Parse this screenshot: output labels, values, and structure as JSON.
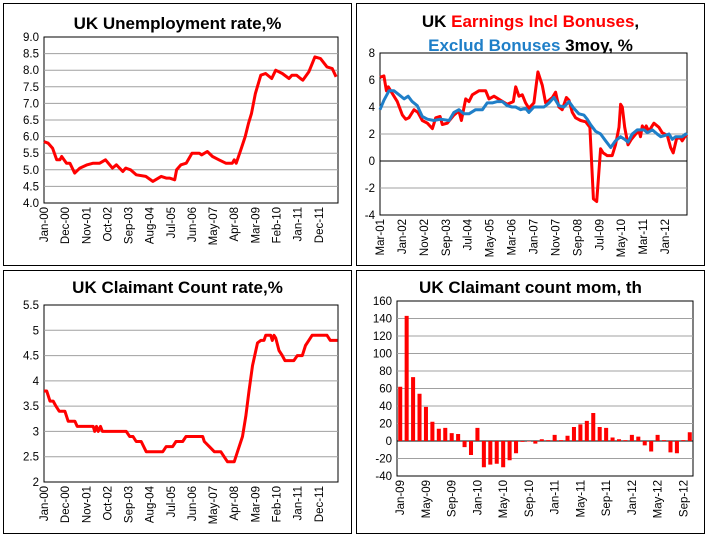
{
  "chart_data": [
    {
      "type": "line",
      "title": "UK Unemployment rate,%",
      "ylim": [
        4.0,
        9.0
      ],
      "xlim": [
        0,
        153
      ],
      "x_unit": "months since Jan-00",
      "yticks": [
        4.0,
        4.5,
        5.0,
        5.5,
        6.0,
        6.5,
        7.0,
        7.5,
        8.0,
        8.5,
        9.0
      ],
      "ytick_labels": [
        "4.0",
        "4.5",
        "5.0",
        "5.5",
        "6.0",
        "6.5",
        "7.0",
        "7.5",
        "8.0",
        "8.5",
        "9.0"
      ],
      "xticks": [
        0,
        11,
        22,
        33,
        44,
        55,
        66,
        77,
        88,
        99,
        110,
        121,
        132,
        143
      ],
      "xtick_labels": [
        "Jan-00",
        "Dec-00",
        "Nov-01",
        "Oct-02",
        "Sep-03",
        "Aug-04",
        "Jul-05",
        "Jun-06",
        "May-07",
        "Apr-08",
        "Mar-09",
        "Feb-10",
        "Jan-11",
        "Dec-11"
      ],
      "grid": true,
      "series": [
        {
          "name": "Unemployment rate",
          "color": "#ff0000",
          "x": [
            0,
            2.2,
            4.5,
            6.6,
            8.3,
            9.2,
            11.7,
            13.5,
            16,
            18.7,
            22.5,
            25.6,
            29,
            32,
            35.6,
            37.7,
            41,
            42.5,
            45,
            48,
            53,
            56.6,
            61,
            63.6,
            65.3,
            68,
            69,
            71.3,
            74,
            77,
            80.8,
            82,
            85,
            87.7,
            91,
            94.6,
            98,
            99,
            100,
            102.4,
            104.7,
            106.4,
            108,
            110,
            112.8,
            115.3,
            118.5,
            120.6,
            124,
            127.5,
            129,
            131.4,
            133.5,
            134.7,
            137.8,
            141,
            143.9,
            147.3,
            150,
            152
          ],
          "y": [
            5.85,
            5.8,
            5.65,
            5.3,
            5.3,
            5.4,
            5.2,
            5.2,
            4.9,
            5.05,
            5.15,
            5.2,
            5.2,
            5.3,
            5.05,
            5.15,
            4.95,
            5.05,
            5.0,
            4.85,
            4.8,
            4.65,
            4.8,
            4.75,
            4.75,
            4.7,
            5.0,
            5.15,
            5.2,
            5.5,
            5.5,
            5.45,
            5.55,
            5.4,
            5.3,
            5.2,
            5.2,
            5.3,
            5.2,
            5.6,
            6.0,
            6.4,
            6.7,
            7.3,
            7.85,
            7.9,
            7.75,
            8.0,
            7.9,
            7.75,
            7.85,
            7.85,
            7.75,
            7.7,
            7.95,
            8.4,
            8.35,
            8.1,
            8.05,
            7.8
          ]
        }
      ]
    },
    {
      "type": "line",
      "title_parts": [
        "UK ",
        "Earnings Incl Bonuses",
        ",",
        "Exclud Bonuses",
        " 3moy, %"
      ],
      "ylim": [
        -4,
        8
      ],
      "xlim": [
        0,
        140
      ],
      "x_unit": "months since Mar-01",
      "yticks": [
        -4,
        -2,
        0,
        2,
        4,
        6,
        8
      ],
      "ytick_labels": [
        "-4",
        "-2",
        "0",
        "2",
        "4",
        "6",
        "8"
      ],
      "xticks": [
        0,
        10,
        20,
        30,
        40,
        50,
        60,
        70,
        80,
        90,
        100,
        110,
        120,
        130
      ],
      "xtick_labels": [
        "Mar-01",
        "Jan-02",
        "Nov-02",
        "Sep-03",
        "Jul-04",
        "May-05",
        "Mar-06",
        "Jan-07",
        "Nov-07",
        "Sep-08",
        "Jul-09",
        "May-10",
        "Mar-11",
        "Jan-12"
      ],
      "grid": true,
      "series": [
        {
          "name": "Earnings Incl Bonuses",
          "color": "#ff0000",
          "x": [
            0,
            1.8,
            2.9,
            3.8,
            5.6,
            7.9,
            10.2,
            11.7,
            13.2,
            15.5,
            17.3,
            19.3,
            21.6,
            23.9,
            25.4,
            27.4,
            28.4,
            30.7,
            33.7,
            36,
            37.1,
            39.1,
            40.6,
            42.1,
            45.1,
            48.2,
            49.7,
            52,
            55,
            58,
            60.8,
            61.9,
            63.4,
            64.9,
            66.4,
            67.9,
            70.2,
            72,
            74,
            75.5,
            78.6,
            80.1,
            81.6,
            83.1,
            85,
            86.2,
            87.7,
            89.2,
            91.5,
            93.8,
            95.7,
            97.3,
            98.8,
            100.6,
            101.8,
            103.6,
            105.9,
            107.4,
            109,
            109.7,
            110.5,
            111.6,
            113.1,
            114.6,
            116.6,
            118.1,
            118.8,
            119.6,
            120.7,
            121.4,
            122.6,
            124.9,
            127.2,
            128.7,
            131,
            132.5,
            133.7,
            135.3,
            137.1,
            137.8,
            139.4,
            140
          ],
          "y": [
            6.2,
            6.3,
            5.2,
            5.5,
            5.0,
            4.4,
            3.4,
            3.1,
            3.2,
            3.8,
            3.6,
            3.0,
            2.8,
            2.4,
            3.2,
            3.3,
            2.7,
            2.8,
            3.4,
            3.7,
            3.0,
            4.6,
            4.4,
            4.9,
            5.2,
            5.2,
            4.6,
            4.8,
            4.5,
            4.2,
            4.4,
            5.5,
            4.8,
            4.9,
            4.3,
            3.9,
            4.3,
            6.6,
            5.6,
            4.3,
            4.7,
            5.1,
            4.0,
            3.8,
            4.7,
            4.5,
            3.6,
            3.2,
            3.0,
            2.9,
            2.5,
            -2.8,
            -3.0,
            0.9,
            0.6,
            0.4,
            0.4,
            1.2,
            2.5,
            4.2,
            4.0,
            2.5,
            1.2,
            1.6,
            2.0,
            2.2,
            1.8,
            2.6,
            2.3,
            2.6,
            2.2,
            2.8,
            2.5,
            2.1,
            1.9,
            1.0,
            0.6,
            1.7,
            1.7,
            1.5,
            1.9,
            1.8
          ]
        },
        {
          "name": "Exclud Bonuses",
          "color": "#1f7fc8",
          "x": [
            0,
            1.8,
            4.1,
            6.4,
            8.7,
            11,
            12.8,
            14.7,
            17,
            19.3,
            21.6,
            24.6,
            27.7,
            31.5,
            33.7,
            36,
            38.3,
            40.6,
            43.6,
            46.7,
            48.9,
            51.2,
            53.5,
            55.8,
            58,
            60.3,
            61.9,
            64.1,
            66.4,
            67.9,
            70.2,
            72.5,
            74.8,
            77.1,
            79.3,
            81.6,
            83.9,
            86.2,
            88.4,
            90.7,
            93,
            94.5,
            96,
            98.3,
            100.6,
            102.9,
            105.2,
            107.4,
            109.7,
            111.6,
            113.1,
            115,
            117.3,
            120.4,
            121.9,
            124.2,
            126.4,
            128,
            130.2,
            131.8,
            133.3,
            134.8,
            137.8,
            139.4,
            140
          ],
          "y": [
            3.8,
            4.5,
            5.2,
            5.2,
            4.9,
            4.6,
            4.8,
            4.4,
            4.1,
            3.3,
            3.1,
            3.0,
            3.1,
            3.0,
            3.6,
            3.8,
            3.5,
            3.5,
            3.8,
            3.8,
            4.3,
            4.3,
            4.4,
            4.4,
            4.1,
            4.0,
            4.0,
            3.8,
            3.9,
            3.6,
            4.0,
            4.0,
            4.0,
            4.3,
            4.7,
            4.1,
            4.0,
            4.4,
            3.9,
            3.5,
            3.4,
            3.1,
            2.7,
            2.2,
            2.0,
            1.5,
            1.0,
            1.5,
            1.8,
            1.6,
            1.4,
            2.0,
            2.3,
            2.3,
            2.1,
            2.3,
            2.0,
            1.8,
            1.9,
            2.0,
            1.6,
            1.8,
            1.8,
            2.0,
            1.9
          ]
        }
      ]
    },
    {
      "type": "line",
      "title": "UK Claimant Count rate,%",
      "ylim": [
        2,
        5.5
      ],
      "xlim": [
        0,
        153
      ],
      "x_unit": "months since Jan-00",
      "yticks": [
        2,
        2.5,
        3,
        3.5,
        4,
        4.5,
        5,
        5.5
      ],
      "ytick_labels": [
        "2",
        "2.5",
        "3",
        "3.5",
        "4",
        "4.5",
        "5",
        "5.5"
      ],
      "xticks": [
        0,
        11,
        22,
        33,
        44,
        55,
        66,
        77,
        88,
        99,
        110,
        121,
        132,
        143
      ],
      "xtick_labels": [
        "Jan-00",
        "Dec-00",
        "Nov-01",
        "Oct-02",
        "Sep-03",
        "Aug-04",
        "Jul-05",
        "Jun-06",
        "May-07",
        "Apr-08",
        "Mar-09",
        "Feb-10",
        "Jan-11",
        "Dec-11"
      ],
      "grid": true,
      "series": [
        {
          "name": "Claimant Count rate",
          "color": "#ff0000",
          "x": [
            0,
            1.4,
            3.1,
            4.8,
            6.2,
            7.9,
            10.9,
            12.6,
            16.1,
            17.3,
            25.6,
            26.4,
            27.3,
            28.2,
            29.4,
            30.4,
            42.8,
            44.6,
            46.3,
            48,
            50.6,
            53.2,
            61.8,
            63.6,
            67,
            68.7,
            72.2,
            73.9,
            82.6,
            83.4,
            86,
            88.6,
            92,
            93.7,
            95.5,
            99,
            100.7,
            103.3,
            105,
            106.7,
            108.5,
            111.1,
            112.8,
            114.5,
            115.4,
            118,
            118.8,
            119.7,
            120.6,
            122.3,
            124,
            125.4,
            130,
            131.8,
            134.4,
            136.1,
            137.8,
            139.5,
            147.3,
            149,
            152.7
          ],
          "y": [
            3.8,
            3.8,
            3.6,
            3.6,
            3.5,
            3.4,
            3.4,
            3.2,
            3.2,
            3.1,
            3.1,
            3.0,
            3.1,
            3.0,
            3.1,
            3.0,
            3.0,
            2.9,
            2.9,
            2.8,
            2.8,
            2.6,
            2.6,
            2.7,
            2.7,
            2.8,
            2.8,
            2.9,
            2.9,
            2.8,
            2.7,
            2.6,
            2.6,
            2.5,
            2.4,
            2.4,
            2.6,
            2.9,
            3.3,
            3.8,
            4.3,
            4.75,
            4.8,
            4.8,
            4.9,
            4.9,
            4.8,
            4.9,
            4.85,
            4.6,
            4.5,
            4.4,
            4.4,
            4.5,
            4.5,
            4.7,
            4.8,
            4.9,
            4.9,
            4.8,
            4.8
          ]
        }
      ]
    },
    {
      "type": "bar",
      "title": "UK Claimant count mom, th",
      "ylim": [
        -40,
        160
      ],
      "yticks": [
        -40,
        -20,
        0,
        20,
        40,
        60,
        80,
        100,
        120,
        140,
        160
      ],
      "ytick_labels": [
        "-40",
        "-20",
        "0",
        "20",
        "40",
        "60",
        "80",
        "100",
        "120",
        "140",
        "160"
      ],
      "xtick_index": [
        0,
        4,
        8,
        12,
        16,
        20,
        24,
        28,
        32,
        36,
        40,
        44
      ],
      "xtick_labels": [
        "Jan-09",
        "May-09",
        "Sep-09",
        "Jan-10",
        "May-10",
        "Sep-10",
        "Jan-11",
        "May-11",
        "Sep-11",
        "Jan-12",
        "May-12",
        "Sep-12"
      ],
      "grid": true,
      "color": "#ff0000",
      "values": [
        62,
        143,
        73,
        54,
        39,
        22,
        14,
        15,
        9,
        8,
        -7,
        -16,
        15,
        -30,
        -27,
        -26,
        -30,
        -22,
        -14,
        -1,
        0,
        -3,
        2,
        1,
        7,
        1,
        6,
        16,
        19,
        23,
        32,
        16,
        15,
        4,
        2,
        1,
        7,
        5,
        -5,
        -12,
        7,
        1,
        -13,
        -14,
        1,
        10
      ]
    }
  ]
}
